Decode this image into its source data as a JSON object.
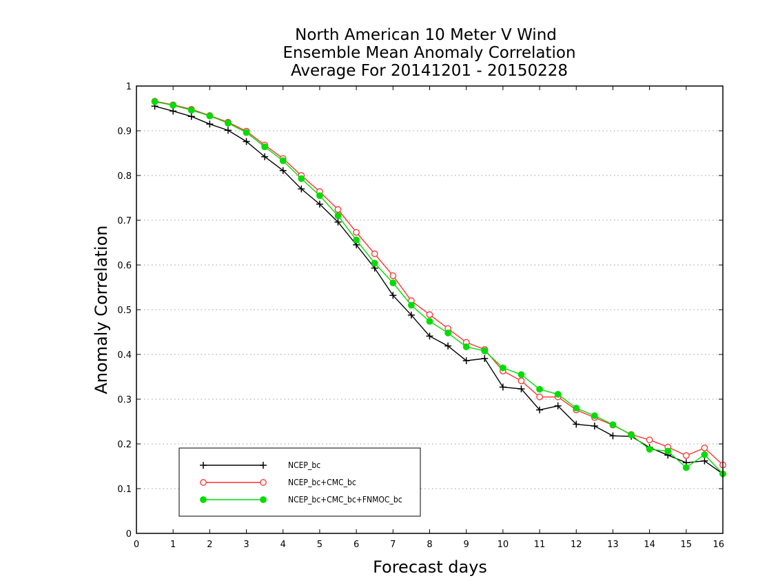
{
  "chart_data": {
    "type": "line",
    "title": [
      "North American 10 Meter V Wind",
      "Ensemble Mean Anomaly Correlation",
      "Average For 20141201 - 20150228"
    ],
    "xlabel": "Forecast days",
    "ylabel": "Anomaly Correlation",
    "xlim": [
      0,
      16
    ],
    "ylim": [
      0,
      1
    ],
    "xticks": [
      0,
      1,
      2,
      3,
      4,
      5,
      6,
      7,
      8,
      9,
      10,
      11,
      12,
      13,
      14,
      15,
      16
    ],
    "xtick_labels": [
      "0",
      "1",
      "2",
      "3",
      "4",
      "5",
      "6",
      "7",
      "8",
      "9",
      "10",
      "11",
      "12",
      "13",
      "14",
      "15",
      "16"
    ],
    "yticks": [
      0,
      0.1,
      0.2,
      0.3,
      0.4,
      0.5,
      0.6,
      0.7,
      0.8,
      0.9,
      1
    ],
    "ytick_labels": [
      "0",
      "0.1",
      "0.2",
      "0.3",
      "0.4",
      "0.5",
      "0.6",
      "0.7",
      "0.8",
      "0.9",
      "1"
    ],
    "grid": "horizontal dotted",
    "legend_position": "bottom-left",
    "x": [
      0.5,
      1,
      1.5,
      2,
      2.5,
      3,
      3.5,
      4,
      4.5,
      5,
      5.5,
      6,
      6.5,
      7,
      7.5,
      8,
      8.5,
      9,
      9.5,
      10,
      10.5,
      11,
      11.5,
      12,
      12.5,
      13,
      13.5,
      14,
      14.5,
      15,
      15.5,
      16
    ],
    "series": [
      {
        "name": "NCEP_bc",
        "color": "#000000",
        "marker": "plus",
        "values": [
          0.955,
          0.944,
          0.932,
          0.915,
          0.901,
          0.876,
          0.842,
          0.811,
          0.77,
          0.736,
          0.696,
          0.645,
          0.593,
          0.532,
          0.488,
          0.441,
          0.419,
          0.386,
          0.391,
          0.327,
          0.323,
          0.276,
          0.285,
          0.244,
          0.24,
          0.218,
          0.217,
          0.192,
          0.175,
          0.158,
          0.162,
          0.133
        ]
      },
      {
        "name": "NCEP_bc+CMC_bc",
        "color": "#ff3030",
        "marker": "open-circle",
        "values": [
          0.966,
          0.958,
          0.948,
          0.934,
          0.919,
          0.899,
          0.868,
          0.838,
          0.8,
          0.764,
          0.724,
          0.673,
          0.625,
          0.576,
          0.52,
          0.489,
          0.458,
          0.427,
          0.411,
          0.363,
          0.341,
          0.305,
          0.305,
          0.276,
          0.259,
          0.242,
          0.221,
          0.209,
          0.193,
          0.174,
          0.191,
          0.153
        ]
      },
      {
        "name": "NCEP_bc+CMC_bc+FNMOC_bc",
        "color": "#00dd00",
        "marker": "filled-circle",
        "values": [
          0.965,
          0.957,
          0.946,
          0.933,
          0.917,
          0.896,
          0.864,
          0.833,
          0.793,
          0.755,
          0.71,
          0.656,
          0.604,
          0.56,
          0.51,
          0.474,
          0.448,
          0.417,
          0.408,
          0.37,
          0.355,
          0.322,
          0.311,
          0.28,
          0.263,
          0.243,
          0.22,
          0.188,
          0.184,
          0.147,
          0.176,
          0.133
        ]
      }
    ]
  }
}
